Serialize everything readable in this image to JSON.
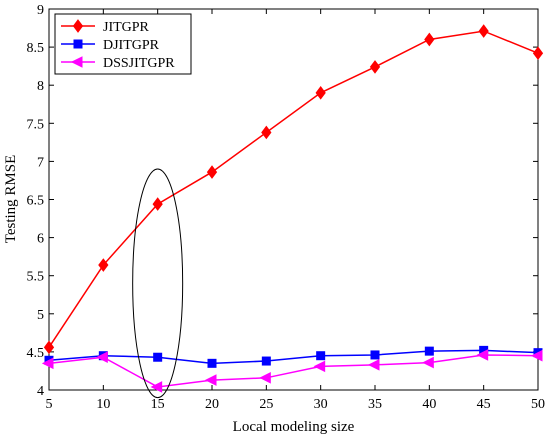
{
  "chart_data": {
    "type": "line",
    "title": "",
    "xlabel": "Local modeling size",
    "ylabel": "Testing RMSE",
    "xlim": [
      5,
      50
    ],
    "ylim": [
      4,
      9
    ],
    "x": [
      5,
      10,
      15,
      20,
      25,
      30,
      35,
      40,
      45,
      50
    ],
    "x_ticks": [
      "5",
      "10",
      "15",
      "20",
      "25",
      "30",
      "35",
      "40",
      "45",
      "50"
    ],
    "y_ticks": [
      "4",
      "4.5",
      "5",
      "5.5",
      "6",
      "6.5",
      "7",
      "7.5",
      "8",
      "8.5",
      "9"
    ],
    "grid": false,
    "legend_position": "top-left",
    "annotation": {
      "shape": "ellipse",
      "at_x": 15,
      "y_range": [
        3.9,
        6.9
      ]
    },
    "series": [
      {
        "name": "JITGPR",
        "color": "#ff0000",
        "marker": "diamond",
        "values": [
          4.56,
          5.64,
          6.44,
          6.86,
          7.38,
          7.9,
          8.24,
          8.6,
          8.71,
          8.42
        ]
      },
      {
        "name": "DJITGPR",
        "color": "#0000ff",
        "marker": "square",
        "values": [
          4.39,
          4.45,
          4.43,
          4.35,
          4.38,
          4.45,
          4.46,
          4.51,
          4.52,
          4.49
        ]
      },
      {
        "name": "DSSJITGPR",
        "color": "#ff00ff",
        "marker": "triangle-left",
        "values": [
          4.35,
          4.43,
          4.04,
          4.13,
          4.16,
          4.31,
          4.33,
          4.36,
          4.46,
          4.45
        ]
      }
    ]
  }
}
